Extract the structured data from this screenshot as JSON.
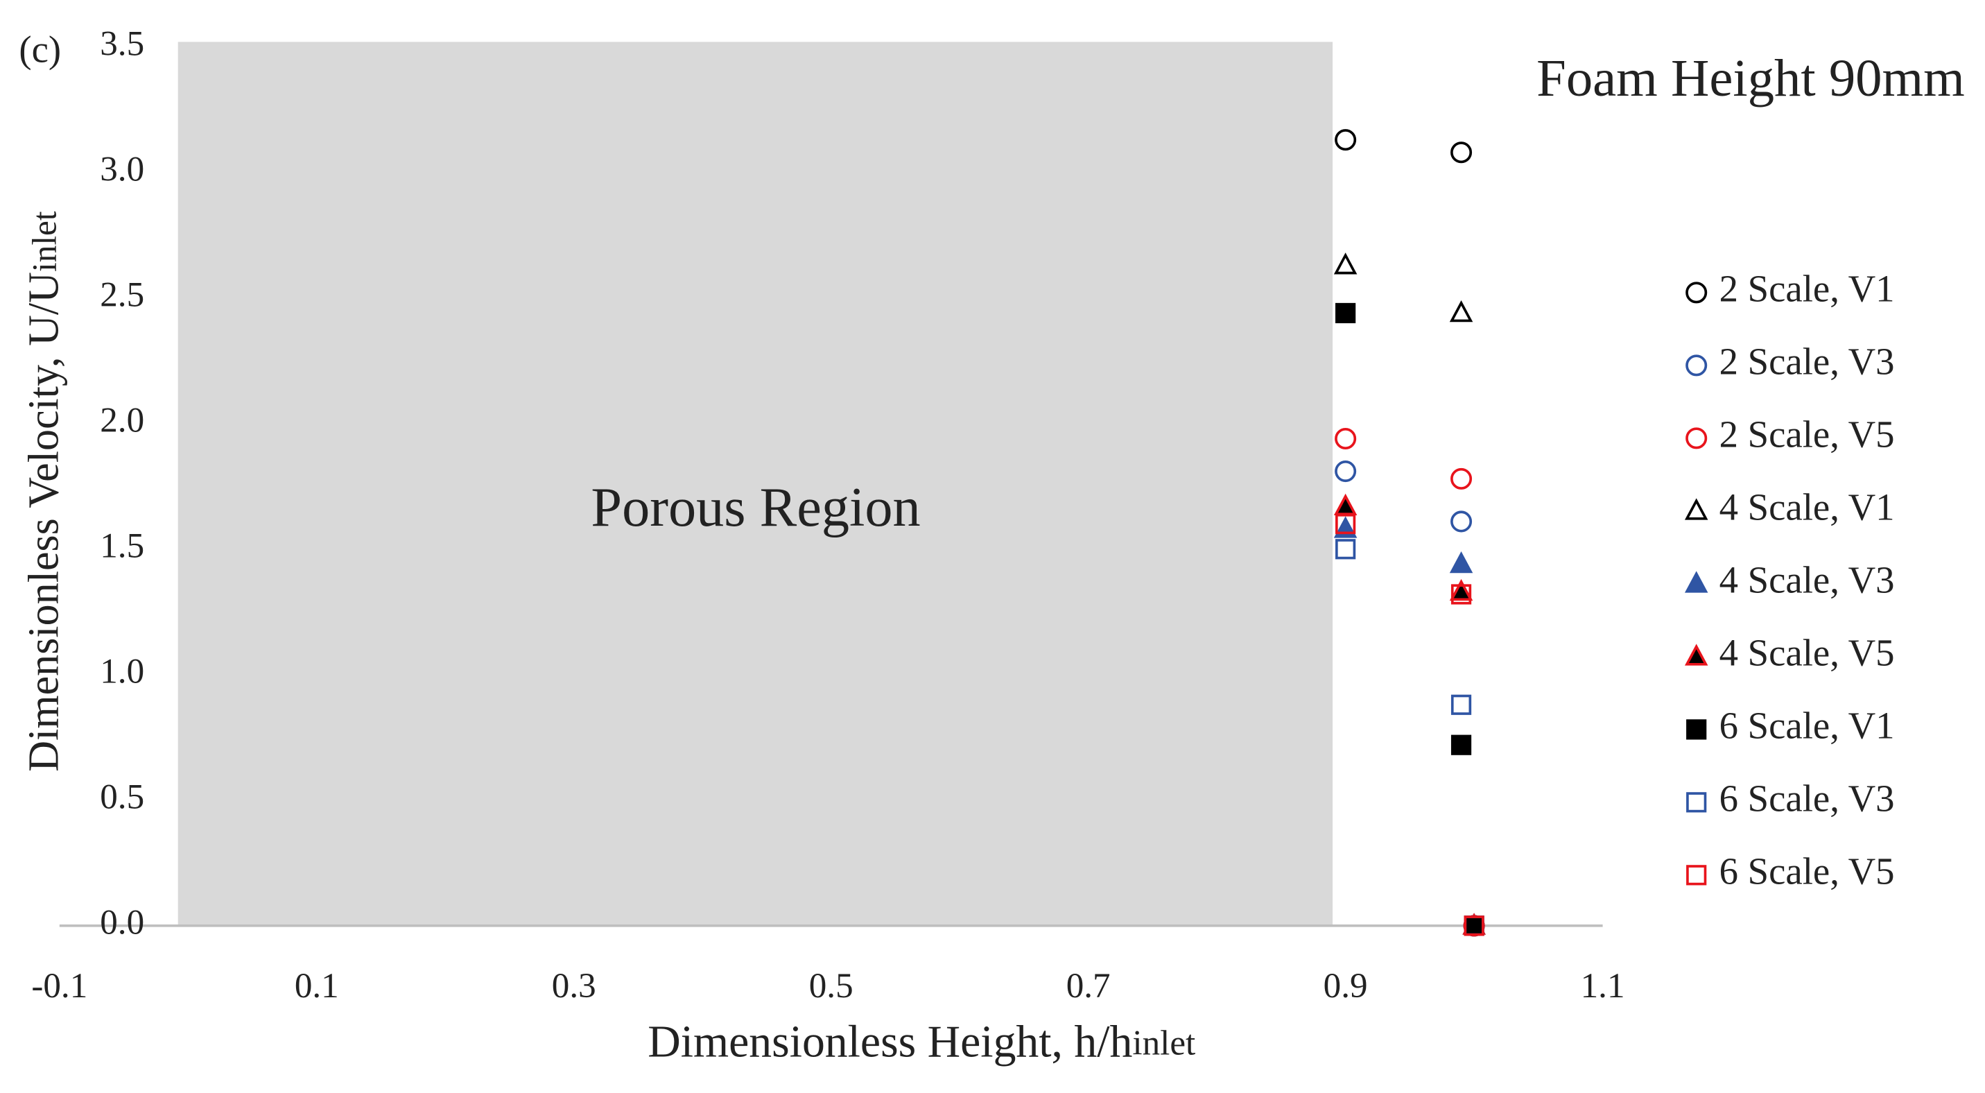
{
  "chart_data": {
    "type": "scatter",
    "panel_label": "(c)",
    "title": "Foam Height 90mm",
    "x_label": {
      "text": "Dimensionless Height, h/h",
      "subscript": "inlet"
    },
    "y_label": {
      "text": "Dimensionless Velocity, U/U",
      "subscript": "inlet"
    },
    "xlim": [
      -0.1,
      1.1
    ],
    "xticks": [
      -0.1,
      0.1,
      0.3,
      0.5,
      0.7,
      0.9,
      1.1
    ],
    "ylim": [
      0,
      3.5
    ],
    "yticks": [
      {
        "value": 0,
        "label": "0.0"
      },
      0.5,
      {
        "value": 1,
        "label": "1.0"
      },
      1.5,
      {
        "value": 2,
        "label": "2.0"
      },
      2.5,
      {
        "value": 3,
        "label": "3.0"
      },
      3.5
    ],
    "shaded_region": {
      "x": [
        0,
        0.89
      ],
      "label": "Porous Region",
      "color": "#d9d9d9"
    },
    "legend": "right",
    "x": [
      0.9,
      0.99,
      1.0
    ],
    "series": [
      {
        "name": "2 Scale, V1",
        "marker": "circle",
        "color": "#000000",
        "fill": "none",
        "values": [
          3.13,
          3.08,
          0
        ]
      },
      {
        "name": "2 Scale, V3",
        "marker": "circle",
        "color": "#2f55a4",
        "fill": "none",
        "values": [
          1.81,
          1.61,
          0
        ]
      },
      {
        "name": "2 Scale, V5",
        "marker": "circle",
        "color": "#e8141c",
        "fill": "none",
        "values": [
          1.94,
          1.78,
          0
        ]
      },
      {
        "name": "4 Scale, V1",
        "marker": "triangle",
        "color": "#000000",
        "fill": "none",
        "values": [
          2.63,
          2.44,
          0
        ]
      },
      {
        "name": "4 Scale, V3",
        "marker": "triangle",
        "color": "#2f55a4",
        "fill": "#2f55a4",
        "values": [
          1.58,
          1.44,
          0
        ]
      },
      {
        "name": "4 Scale, V5",
        "marker": "triangle",
        "color": "#e8141c",
        "fill": "#000000",
        "values": [
          1.67,
          1.33,
          0
        ]
      },
      {
        "name": "6 Scale, V1",
        "marker": "square",
        "color": "#000000",
        "fill": "#000000",
        "values": [
          2.44,
          0.72,
          0
        ]
      },
      {
        "name": "6 Scale, V3",
        "marker": "square",
        "color": "#2f55a4",
        "fill": "none",
        "values": [
          1.5,
          0.88,
          0
        ]
      },
      {
        "name": "6 Scale, V5",
        "marker": "square",
        "color": "#e8141c",
        "fill": "none",
        "values": [
          1.6,
          1.32,
          0
        ]
      }
    ]
  }
}
